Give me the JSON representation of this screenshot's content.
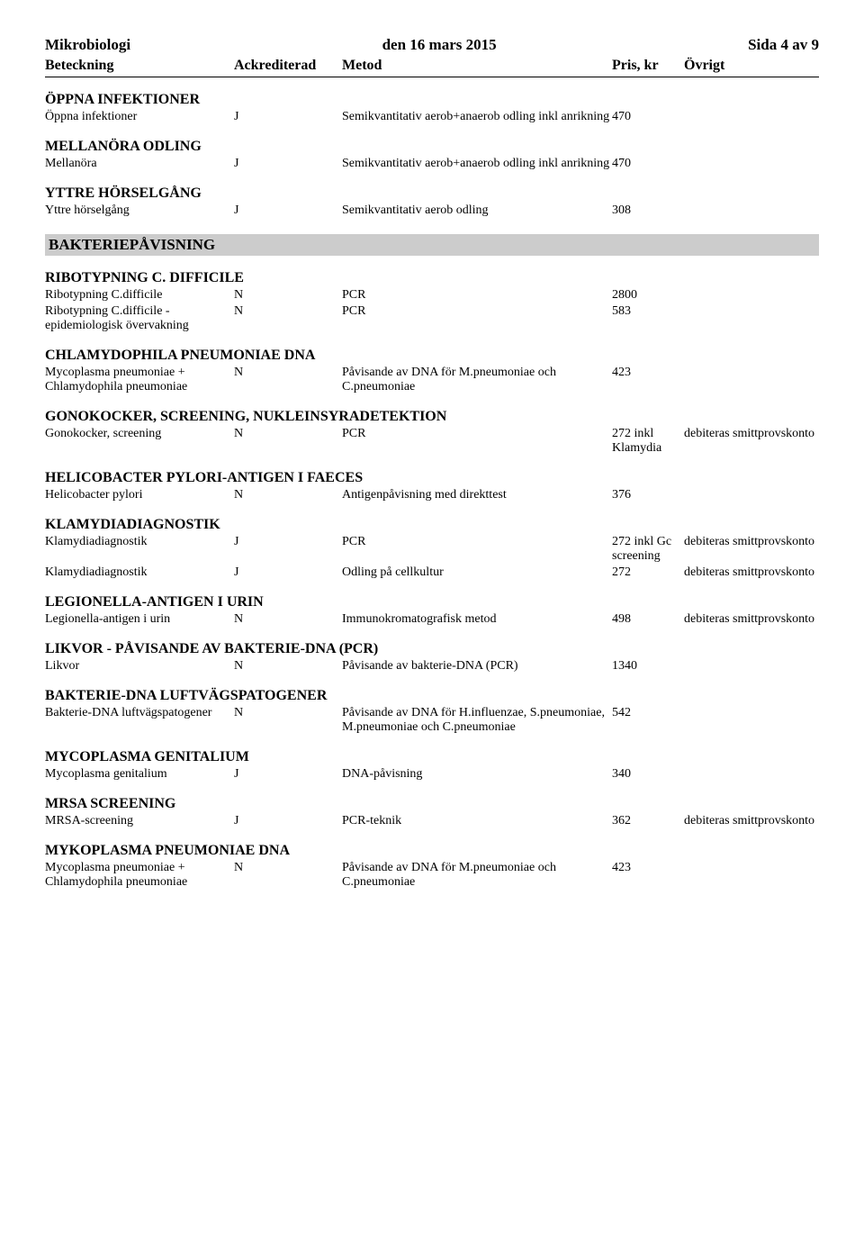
{
  "header": {
    "left": "Mikrobiologi",
    "center": "den 16 mars 2015",
    "right": "Sida 4 av 9"
  },
  "columns": {
    "beteckning": "Beteckning",
    "ackrediterad": "Ackrediterad",
    "metod": "Metod",
    "pris": "Pris, kr",
    "ovrigt": "Övrigt"
  },
  "sections": [
    {
      "heading": "ÖPPNA INFEKTIONER",
      "rows": [
        {
          "name": "Öppna infektioner",
          "ack": "J",
          "metod": "Semikvantitativ aerob+anaerob odling inkl anrikning",
          "pris": "470",
          "ovrigt": ""
        }
      ]
    },
    {
      "heading": "MELLANÖRA ODLING",
      "rows": [
        {
          "name": "Mellanöra",
          "ack": "J",
          "metod": "Semikvantitativ aerob+anaerob odling inkl anrikning",
          "pris": "470",
          "ovrigt": ""
        }
      ]
    },
    {
      "heading": "YTTRE HÖRSELGÅNG",
      "rows": [
        {
          "name": "Yttre hörselgång",
          "ack": "J",
          "metod": "Semikvantitativ aerob odling",
          "pris": "308",
          "ovrigt": ""
        }
      ]
    }
  ],
  "banded_heading": "BAKTERIEPÅVISNING",
  "sections2": [
    {
      "heading": "RIBOTYPNING C. DIFFICILE",
      "rows": [
        {
          "name": "Ribotypning C.difficile",
          "ack": "N",
          "metod": "PCR",
          "pris": "2800",
          "ovrigt": ""
        },
        {
          "name": "Ribotypning C.difficile - epidemiologisk övervakning",
          "ack": "N",
          "metod": "PCR",
          "pris": "583",
          "ovrigt": ""
        }
      ]
    },
    {
      "heading": "CHLAMYDOPHILA PNEUMONIAE DNA",
      "rows": [
        {
          "name": "Mycoplasma pneumoniae + Chlamydophila pneumoniae",
          "ack": "N",
          "metod": "Påvisande av DNA för M.pneumoniae och C.pneumoniae",
          "pris": "423",
          "ovrigt": ""
        }
      ]
    },
    {
      "heading": "GONOKOCKER, SCREENING, NUKLEINSYRADETEKTION",
      "rows": [
        {
          "name": "Gonokocker, screening",
          "ack": "N",
          "metod": "PCR",
          "pris": "272 inkl Klamydia",
          "ovrigt": "debiteras smittprovskonto"
        }
      ]
    },
    {
      "heading": "HELICOBACTER PYLORI-ANTIGEN I FAECES",
      "rows": [
        {
          "name": "Helicobacter pylori",
          "ack": "N",
          "metod": "Antigenpåvisning med direkttest",
          "pris": "376",
          "ovrigt": ""
        }
      ]
    },
    {
      "heading": "KLAMYDIADIAGNOSTIK",
      "rows": [
        {
          "name": "Klamydiadiagnostik",
          "ack": "J",
          "metod": "PCR",
          "pris": "272 inkl Gc screening",
          "ovrigt": "debiteras smittprovskonto"
        },
        {
          "name": "Klamydiadiagnostik",
          "ack": "J",
          "metod": "Odling på cellkultur",
          "pris": "272",
          "ovrigt": "debiteras smittprovskonto"
        }
      ]
    },
    {
      "heading": "LEGIONELLA-ANTIGEN I URIN",
      "rows": [
        {
          "name": "Legionella-antigen i urin",
          "ack": "N",
          "metod": "Immunokromatografisk metod",
          "pris": "498",
          "ovrigt": "debiteras smittprovskonto"
        }
      ]
    },
    {
      "heading": "LIKVOR - PÅVISANDE AV BAKTERIE-DNA (PCR)",
      "rows": [
        {
          "name": "Likvor",
          "ack": "N",
          "metod": "Påvisande av bakterie-DNA (PCR)",
          "pris": "1340",
          "ovrigt": ""
        }
      ]
    },
    {
      "heading": "BAKTERIE-DNA LUFTVÄGSPATOGENER",
      "rows": [
        {
          "name": "Bakterie-DNA luftvägspatogener",
          "ack": "N",
          "metod": "Påvisande av DNA för H.influenzae, S.pneumoniae, M.pneumoniae och C.pneumoniae",
          "pris": "542",
          "ovrigt": ""
        }
      ]
    },
    {
      "heading": "MYCOPLASMA GENITALIUM",
      "rows": [
        {
          "name": "Mycoplasma genitalium",
          "ack": "J",
          "metod": "DNA-påvisning",
          "pris": "340",
          "ovrigt": ""
        }
      ]
    },
    {
      "heading": "MRSA SCREENING",
      "rows": [
        {
          "name": "MRSA-screening",
          "ack": "J",
          "metod": "PCR-teknik",
          "pris": "362",
          "ovrigt": "debiteras smittprovskonto"
        }
      ]
    },
    {
      "heading": "MYKOPLASMA PNEUMONIAE DNA",
      "rows": [
        {
          "name": "Mycoplasma pneumoniae + Chlamydophila pneumoniae",
          "ack": "N",
          "metod": "Påvisande av DNA för M.pneumoniae och C.pneumoniae",
          "pris": "423",
          "ovrigt": ""
        }
      ]
    }
  ]
}
